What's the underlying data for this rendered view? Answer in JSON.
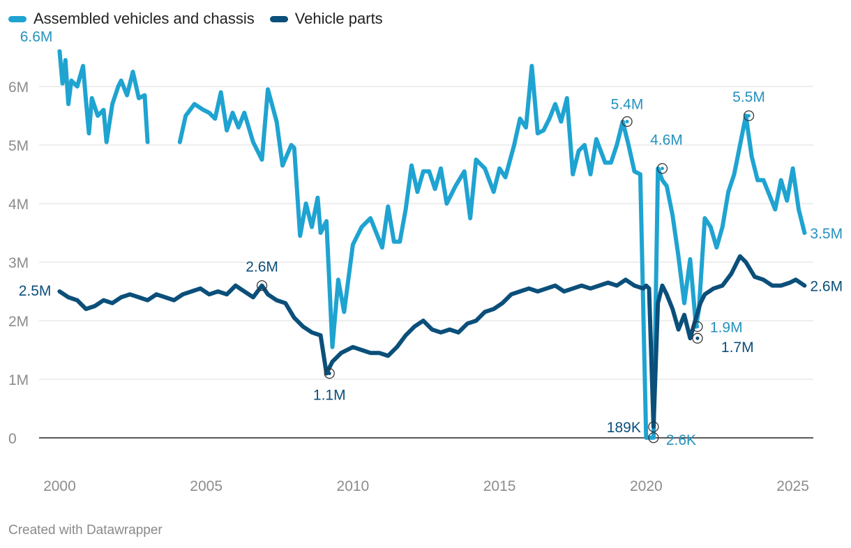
{
  "legend": {
    "series_a": "Assembled vehicles and chassis",
    "series_b": "Vehicle parts"
  },
  "credit": "Created with Datawrapper",
  "colors": {
    "series_a": "#1fa3d1",
    "series_b": "#0b4f7a",
    "label_a": "#2592bd",
    "label_b": "#0b4f7a"
  },
  "chart_data": {
    "type": "line",
    "title": "",
    "xlabel": "",
    "ylabel": "",
    "xlim": [
      1999.3,
      2025.7
    ],
    "ylim": [
      0,
      6600000
    ],
    "x_ticks": [
      2000,
      2005,
      2010,
      2015,
      2020,
      2025
    ],
    "x_tick_labels": [
      "2000",
      "2005",
      "2010",
      "2015",
      "2020",
      "2025"
    ],
    "y_ticks": [
      0,
      1000000,
      2000000,
      3000000,
      4000000,
      5000000,
      6000000
    ],
    "y_tick_labels": [
      "0",
      "1M",
      "2M",
      "3M",
      "4M",
      "5M",
      "6M"
    ],
    "grid": true,
    "legend": "top-left",
    "series": [
      {
        "name": "Assembled vehicles and chassis",
        "x": [
          2000.0,
          2000.1,
          2000.2,
          2000.3,
          2000.4,
          2000.6,
          2000.8,
          2000.9,
          2001.0,
          2001.1,
          2001.3,
          2001.5,
          2001.6,
          2001.8,
          2002.0,
          2002.1,
          2002.3,
          2002.5,
          2002.7,
          2002.9,
          2003.0,
          2004.1,
          2004.3,
          2004.6,
          2004.9,
          2005.1,
          2005.3,
          2005.5,
          2005.7,
          2005.9,
          2006.1,
          2006.3,
          2006.6,
          2006.8,
          2006.9,
          2007.1,
          2007.4,
          2007.6,
          2007.9,
          2008.0,
          2008.2,
          2008.4,
          2008.6,
          2008.8,
          2008.9,
          2009.1,
          2009.3,
          2009.5,
          2009.7,
          2010.0,
          2010.3,
          2010.6,
          2010.8,
          2011.0,
          2011.2,
          2011.4,
          2011.6,
          2011.8,
          2012.0,
          2012.2,
          2012.4,
          2012.6,
          2012.8,
          2013.0,
          2013.2,
          2013.5,
          2013.8,
          2014.0,
          2014.2,
          2014.5,
          2014.8,
          2015.0,
          2015.2,
          2015.5,
          2015.7,
          2015.9,
          2016.1,
          2016.3,
          2016.5,
          2016.7,
          2016.9,
          2017.1,
          2017.3,
          2017.5,
          2017.7,
          2017.9,
          2018.1,
          2018.3,
          2018.6,
          2018.8,
          2019.0,
          2019.2,
          2019.4,
          2019.6,
          2019.8,
          2020.0,
          2020.1,
          2020.25,
          2020.4,
          2020.55,
          2020.7,
          2020.9,
          2021.1,
          2021.3,
          2021.5,
          2021.7,
          2021.8,
          2022.0,
          2022.2,
          2022.4,
          2022.6,
          2022.8,
          2023.0,
          2023.2,
          2023.4,
          2023.6,
          2023.8,
          2024.0,
          2024.2,
          2024.4,
          2024.6,
          2024.8,
          2025.0,
          2025.2,
          2025.4
        ],
        "values": [
          6600000,
          6050000,
          6450000,
          5700000,
          6100000,
          6000000,
          6350000,
          5750000,
          5200000,
          5800000,
          5500000,
          5600000,
          5050000,
          5700000,
          6000000,
          6100000,
          5850000,
          6250000,
          5800000,
          5850000,
          5050000,
          5050000,
          5500000,
          5700000,
          5600000,
          5550000,
          5450000,
          5900000,
          5250000,
          5550000,
          5300000,
          5550000,
          5050000,
          4850000,
          4750000,
          5950000,
          5400000,
          4650000,
          5000000,
          4950000,
          3450000,
          4000000,
          3600000,
          4100000,
          3500000,
          3700000,
          1550000,
          2700000,
          2150000,
          3300000,
          3600000,
          3750000,
          3500000,
          3250000,
          3950000,
          3350000,
          3350000,
          3900000,
          4650000,
          4200000,
          4550000,
          4550000,
          4250000,
          4600000,
          4000000,
          4300000,
          4550000,
          3750000,
          4750000,
          4600000,
          4200000,
          4600000,
          4450000,
          5000000,
          5450000,
          5300000,
          6350000,
          5200000,
          5250000,
          5450000,
          5700000,
          5400000,
          5800000,
          4500000,
          4900000,
          5000000,
          4500000,
          5100000,
          4700000,
          4700000,
          5000000,
          5400000,
          5000000,
          4550000,
          4500000,
          2600,
          2600,
          2600,
          4600000,
          4400000,
          4300000,
          3800000,
          3100000,
          2300000,
          3050000,
          1900000,
          2200000,
          3750000,
          3600000,
          3250000,
          3600000,
          4200000,
          4500000,
          5000000,
          5500000,
          4800000,
          4400000,
          4400000,
          4150000,
          3900000,
          4400000,
          4050000,
          4600000,
          3900000,
          3500000
        ]
      },
      {
        "name": "Vehicle parts",
        "x": [
          2000.0,
          2000.3,
          2000.6,
          2000.9,
          2001.2,
          2001.5,
          2001.8,
          2002.1,
          2002.4,
          2002.7,
          2003.0,
          2003.3,
          2003.6,
          2003.9,
          2004.2,
          2004.5,
          2004.8,
          2005.1,
          2005.4,
          2005.7,
          2006.0,
          2006.3,
          2006.6,
          2006.9,
          2007.1,
          2007.4,
          2007.7,
          2008.0,
          2008.3,
          2008.6,
          2008.9,
          2009.1,
          2009.3,
          2009.6,
          2010.0,
          2010.3,
          2010.6,
          2010.9,
          2011.2,
          2011.5,
          2011.8,
          2012.1,
          2012.4,
          2012.7,
          2013.0,
          2013.3,
          2013.6,
          2013.9,
          2014.2,
          2014.5,
          2014.8,
          2015.1,
          2015.4,
          2015.7,
          2016.0,
          2016.3,
          2016.6,
          2016.9,
          2017.2,
          2017.5,
          2017.8,
          2018.1,
          2018.4,
          2018.7,
          2019.0,
          2019.3,
          2019.6,
          2019.9,
          2020.0,
          2020.1,
          2020.25,
          2020.4,
          2020.55,
          2020.7,
          2020.9,
          2021.1,
          2021.3,
          2021.5,
          2021.7,
          2021.85,
          2022.0,
          2022.3,
          2022.6,
          2022.9,
          2023.2,
          2023.4,
          2023.7,
          2024.0,
          2024.3,
          2024.6,
          2024.9,
          2025.1,
          2025.4
        ],
        "values": [
          2500000,
          2400000,
          2350000,
          2200000,
          2250000,
          2350000,
          2300000,
          2400000,
          2450000,
          2400000,
          2350000,
          2450000,
          2400000,
          2350000,
          2450000,
          2500000,
          2550000,
          2450000,
          2500000,
          2450000,
          2600000,
          2500000,
          2400000,
          2600000,
          2450000,
          2350000,
          2300000,
          2050000,
          1900000,
          1800000,
          1750000,
          1100000,
          1300000,
          1450000,
          1550000,
          1500000,
          1450000,
          1450000,
          1400000,
          1550000,
          1750000,
          1900000,
          2000000,
          1850000,
          1800000,
          1850000,
          1800000,
          1950000,
          2000000,
          2150000,
          2200000,
          2300000,
          2450000,
          2500000,
          2550000,
          2500000,
          2550000,
          2600000,
          2500000,
          2550000,
          2600000,
          2550000,
          2600000,
          2650000,
          2600000,
          2700000,
          2600000,
          2550000,
          2600000,
          2550000,
          189000,
          2300000,
          2600000,
          2450000,
          2200000,
          1850000,
          2100000,
          1700000,
          2050000,
          2300000,
          2450000,
          2550000,
          2600000,
          2800000,
          3100000,
          3000000,
          2750000,
          2700000,
          2600000,
          2600000,
          2650000,
          2700000,
          2600000
        ]
      }
    ],
    "annotations": [
      {
        "series": 0,
        "x": 2000.0,
        "y": 6600000,
        "text": "6.6M",
        "marker": false
      },
      {
        "series": 0,
        "x": 2019.35,
        "y": 5400000,
        "text": "5.4M",
        "marker": true
      },
      {
        "series": 0,
        "x": 2020.55,
        "y": 4600000,
        "text": "4.6M",
        "marker": true
      },
      {
        "series": 0,
        "x": 2023.5,
        "y": 5500000,
        "text": "5.5M",
        "marker": true
      },
      {
        "series": 0,
        "x": 2025.4,
        "y": 3500000,
        "text": "3.5M",
        "marker": false
      },
      {
        "series": 0,
        "x": 2021.75,
        "y": 1900000,
        "text": "1.9M",
        "marker": true
      },
      {
        "series": 0,
        "x": 2020.25,
        "y": 2600,
        "text": "2.6K",
        "marker": true
      },
      {
        "series": 1,
        "x": 2000.0,
        "y": 2500000,
        "text": "2.5M",
        "marker": false
      },
      {
        "series": 1,
        "x": 2006.9,
        "y": 2600000,
        "text": "2.6M",
        "marker": true
      },
      {
        "series": 1,
        "x": 2009.2,
        "y": 1100000,
        "text": "1.1M",
        "marker": true
      },
      {
        "series": 1,
        "x": 2020.25,
        "y": 189000,
        "text": "189K",
        "marker": true
      },
      {
        "series": 1,
        "x": 2021.75,
        "y": 1700000,
        "text": "1.7M",
        "marker": true
      },
      {
        "series": 1,
        "x": 2025.4,
        "y": 2600000,
        "text": "2.6M",
        "marker": false
      }
    ]
  }
}
